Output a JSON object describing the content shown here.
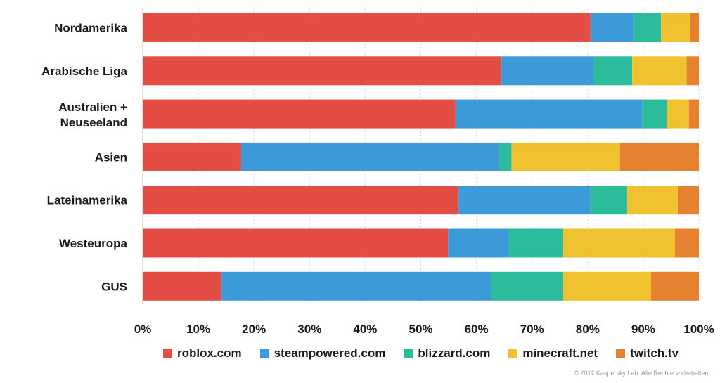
{
  "chart_data": {
    "type": "bar",
    "orientation": "horizontal",
    "stacked": true,
    "categories": [
      "Nordamerika",
      "Arabische Liga",
      "Australien + Neuseeland",
      "Asien",
      "Lateinamerika",
      "Westeuropa",
      "GUS"
    ],
    "series": [
      {
        "name": "roblox.com",
        "color": "#e44d43",
        "values": [
          80.5,
          64.5,
          56.2,
          17.7,
          56.8,
          54.9,
          14.2
        ]
      },
      {
        "name": "steampowered.com",
        "color": "#3c9ad9",
        "values": [
          7.7,
          16.6,
          33.6,
          46.4,
          23.7,
          10.9,
          48.5
        ]
      },
      {
        "name": "blizzard.com",
        "color": "#2bbd9b",
        "values": [
          5.0,
          6.9,
          4.5,
          2.2,
          6.6,
          9.8,
          12.9
        ]
      },
      {
        "name": "minecraft.net",
        "color": "#f0c230",
        "values": [
          5.2,
          9.8,
          3.9,
          19.5,
          9.1,
          20.1,
          15.8
        ]
      },
      {
        "name": "twitch.tv",
        "color": "#e6822f",
        "values": [
          1.6,
          2.2,
          1.8,
          14.2,
          3.8,
          4.3,
          8.6
        ]
      }
    ],
    "xlim": [
      0,
      100
    ],
    "xticks": [
      "0%",
      "10%",
      "20%",
      "30%",
      "40%",
      "50%",
      "60%",
      "70%",
      "80%",
      "90%",
      "100%"
    ],
    "grid": true,
    "legend_position": "bottom"
  },
  "copyright": "© 2017 Kaspersky Lab. Alle Rechte vorbehalten."
}
